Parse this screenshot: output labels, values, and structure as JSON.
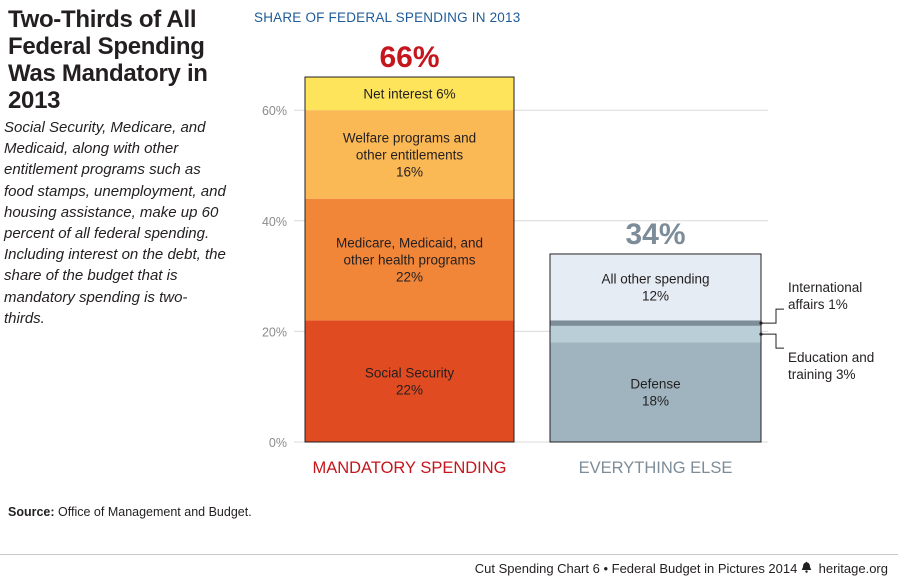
{
  "header": {
    "title": "Two-Thirds of All Federal Spending Was Mandatory in 2013",
    "description": "Social Security, Medicare, and Medicaid, along with other entitlement programs such as food stamps, unemployment, and housing assistance, make up 60 percent of all federal spending. Including interest on the debt, the share of the budget that is mandatory spending is two-thirds."
  },
  "chart_data": {
    "type": "bar",
    "stacked": true,
    "title": "SHARE OF FEDERAL SPENDING IN 2013",
    "xlabel": "",
    "ylabel": "",
    "ylim": [
      0,
      70
    ],
    "yticks": [
      0,
      20,
      40,
      60
    ],
    "ytick_labels": [
      "0%",
      "20%",
      "40%",
      "60%"
    ],
    "grid": true,
    "categories": [
      "MANDATORY SPENDING",
      "EVERYTHING ELSE"
    ],
    "totals": [
      "66%",
      "34%"
    ],
    "totals_values": [
      66,
      34
    ],
    "stacks": [
      [
        {
          "lines": [
            "Social Security",
            "22%"
          ],
          "value": 22,
          "color": "#e14b22"
        },
        {
          "lines": [
            "Medicare, Medicaid, and",
            "other health programs",
            "22%"
          ],
          "value": 22,
          "color": "#f18639"
        },
        {
          "lines": [
            "Welfare programs and",
            "other entitlements",
            "16%"
          ],
          "value": 16,
          "color": "#fbb955"
        },
        {
          "lines": [
            "Net interest 6%"
          ],
          "value": 6,
          "color": "#fde45b"
        }
      ],
      [
        {
          "lines": [
            "Defense",
            "18%"
          ],
          "value": 18,
          "color": "#9fb4bf"
        },
        {
          "lines": [],
          "value": 3,
          "color": "#b9ced6",
          "callout": [
            "Education and",
            "training 3%"
          ]
        },
        {
          "lines": [],
          "value": 1,
          "color": "#7e8e98",
          "callout": [
            "International",
            "affairs 1%"
          ]
        },
        {
          "lines": [
            "All other spending",
            "12%"
          ],
          "value": 12,
          "color": "#e5ecf3"
        }
      ]
    ],
    "colors": {
      "mandatory_label": "#c4161c",
      "other_label": "#7c8c99",
      "total_mandatory": "#c4161c",
      "total_other": "#7c8c99",
      "grid": "#d9d9d9",
      "axis_text": "#8c8c8c",
      "title": "#1f5c99"
    }
  },
  "source": {
    "label": "Source:",
    "text": "Office of Management and Budget."
  },
  "footer": {
    "chart_ref": "Cut Spending Chart 6",
    "separator": "•",
    "publication": "Federal Budget in Pictures 2014",
    "site": "heritage.org"
  }
}
